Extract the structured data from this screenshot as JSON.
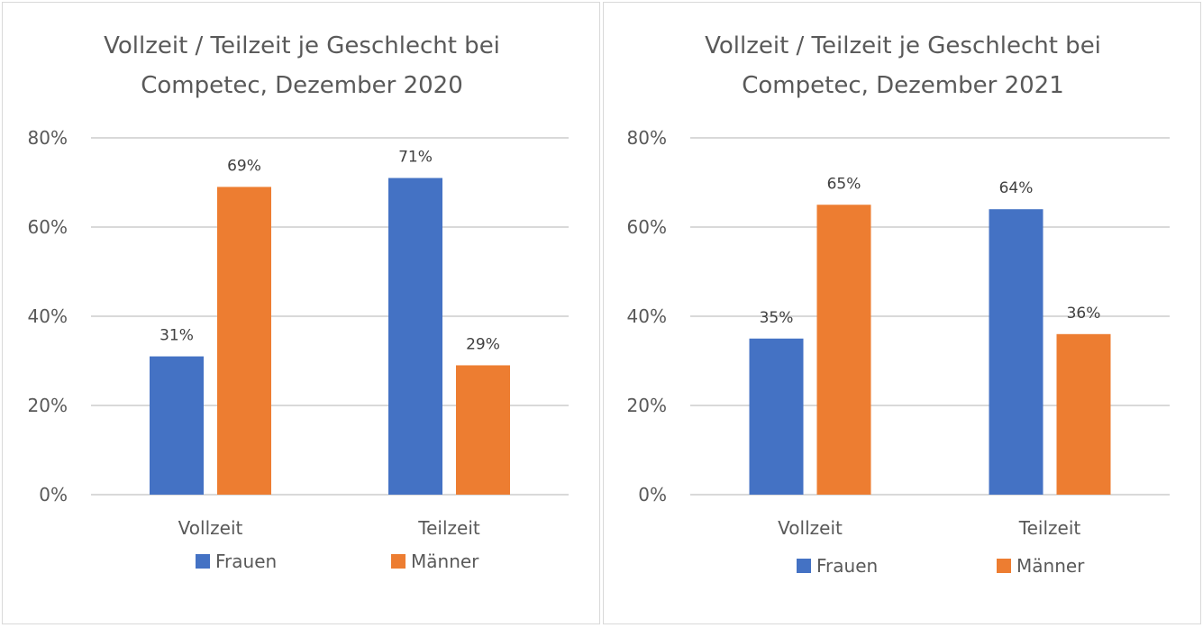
{
  "chart_data": [
    {
      "type": "bar",
      "title_lines": [
        "Vollzeit / Teilzeit je Geschlecht bei",
        "Competec, Dezember 2020"
      ],
      "categories": [
        "Vollzeit",
        "Teilzeit"
      ],
      "series": [
        {
          "name": "Frauen",
          "color": "#4472c4",
          "values": [
            31,
            71
          ],
          "labels": [
            "31%",
            "71%"
          ]
        },
        {
          "name": "Männer",
          "color": "#ed7d31",
          "values": [
            69,
            29
          ],
          "labels": [
            "69%",
            "29%"
          ]
        }
      ],
      "yticks": [
        "0%",
        "20%",
        "40%",
        "60%",
        "80%"
      ],
      "ytick_values": [
        0,
        20,
        40,
        60,
        80
      ],
      "ylim": [
        0,
        80
      ],
      "grid": true,
      "legend": "bottom"
    },
    {
      "type": "bar",
      "title_lines": [
        "Vollzeit / Teilzeit je Geschlecht bei",
        "Competec, Dezember 2021"
      ],
      "categories": [
        "Vollzeit",
        "Teilzeit"
      ],
      "series": [
        {
          "name": "Frauen",
          "color": "#4472c4",
          "values": [
            35,
            64
          ],
          "labels": [
            "35%",
            "64%"
          ]
        },
        {
          "name": "Männer",
          "color": "#ed7d31",
          "values": [
            65,
            36
          ],
          "labels": [
            "65%",
            "36%"
          ]
        }
      ],
      "yticks": [
        "0%",
        "20%",
        "40%",
        "60%",
        "80%"
      ],
      "ytick_values": [
        0,
        20,
        40,
        60,
        80
      ],
      "ylim": [
        0,
        80
      ],
      "grid": true,
      "legend": "bottom"
    }
  ]
}
